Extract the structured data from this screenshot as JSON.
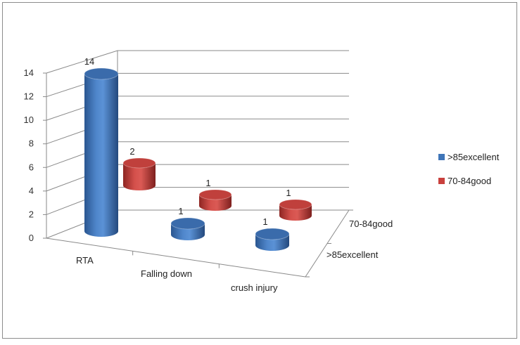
{
  "chart_data": {
    "type": "bar",
    "subtype": "3d-cylinder",
    "categories": [
      "RTA",
      "Falling down",
      "crush injury"
    ],
    "series": [
      {
        "name": ">85excellent",
        "values": [
          14,
          1,
          1
        ],
        "color": "#3f75b8"
      },
      {
        "name": "70-84good",
        "values": [
          2,
          1,
          1
        ],
        "color": "#c9403d"
      }
    ],
    "depth_labels": [
      ">85excellent",
      "70-84good"
    ],
    "ylim": [
      0,
      14
    ],
    "yticks": [
      "0",
      "2",
      "4",
      "6",
      "8",
      "10",
      "12",
      "14"
    ],
    "grid": true,
    "legend_position": "right"
  }
}
